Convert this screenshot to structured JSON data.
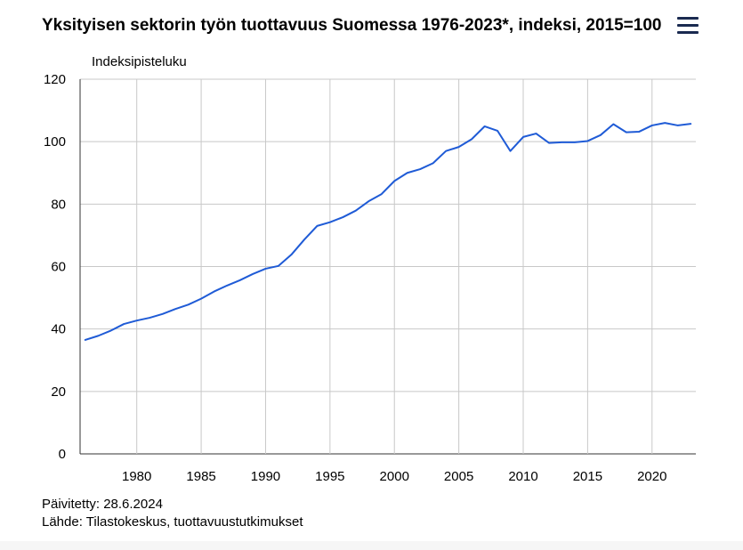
{
  "header": {
    "title": "Yksityisen sektorin työn tuottavuus Suomessa 1976-2023*, indeksi, 2015=100",
    "menu_icon": "hamburger-menu-icon"
  },
  "chart_data": {
    "type": "line",
    "title": "Yksityisen sektorin työn tuottavuus Suomessa 1976-2023*, indeksi, 2015=100",
    "ylabel": "Indeksipisteluku",
    "xlabel": "",
    "xlim": [
      1975.6,
      2023.4
    ],
    "ylim": [
      0,
      120
    ],
    "x_ticks": [
      1980,
      1985,
      1990,
      1995,
      2000,
      2005,
      2010,
      2015,
      2020
    ],
    "y_ticks": [
      0,
      20,
      40,
      60,
      80,
      100,
      120
    ],
    "grid": true,
    "line_color": "#1f5bd6",
    "series": [
      {
        "x": [
          1976,
          1977,
          1978,
          1979,
          1980,
          1981,
          1982,
          1983,
          1984,
          1985,
          1986,
          1987,
          1988,
          1989,
          1990,
          1991,
          1992,
          1993,
          1994,
          1995,
          1996,
          1997,
          1998,
          1999,
          2000,
          2001,
          2002,
          2003,
          2004,
          2005,
          2006,
          2007,
          2008,
          2009,
          2010,
          2011,
          2012,
          2013,
          2014,
          2015,
          2016,
          2017,
          2018,
          2019,
          2020,
          2021,
          2022,
          2023
        ],
        "values": [
          36.5,
          37.8,
          39.5,
          41.6,
          42.7,
          43.6,
          44.8,
          46.4,
          47.8,
          49.7,
          52.0,
          53.9,
          55.6,
          57.6,
          59.3,
          60.2,
          63.8,
          68.6,
          73.0,
          74.2,
          75.8,
          77.9,
          80.9,
          83.2,
          87.4,
          90.0,
          91.2,
          93.1,
          97.0,
          98.3,
          100.8,
          104.9,
          103.5,
          97.0,
          101.5,
          102.6,
          99.6,
          99.8,
          99.8,
          100.2,
          102.1,
          105.6,
          103.0,
          103.2,
          105.2,
          106.0,
          105.2,
          105.7
        ]
      }
    ]
  },
  "footer": {
    "updated": "Päivitetty: 28.6.2024",
    "source": "Lähde: Tilastokeskus, tuottavuustutkimukset"
  }
}
